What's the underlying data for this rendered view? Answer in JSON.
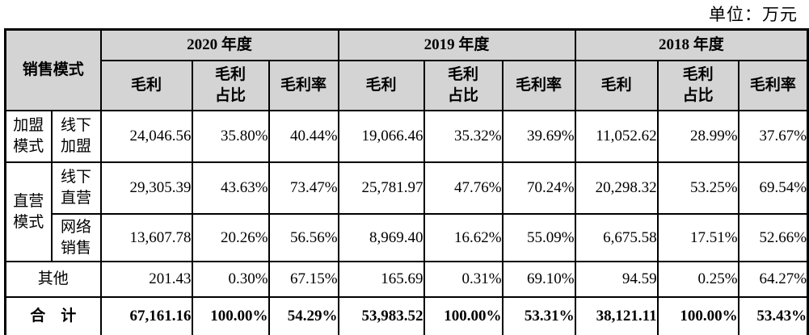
{
  "unit_label": "单位：万元",
  "table": {
    "group_header": "销售模式",
    "year_headers": [
      "2020 年度",
      "2019 年度",
      "2018 年度"
    ],
    "sub_headers": {
      "gross_profit": "毛利",
      "gross_profit_share": "毛利\n占比",
      "gross_margin": "毛利率"
    },
    "rows": [
      {
        "mode": "加盟\n模式",
        "channel": "线下\n加盟",
        "values": [
          "24,046.56",
          "35.80%",
          "40.44%",
          "19,066.46",
          "35.32%",
          "39.69%",
          "11,052.62",
          "28.99%",
          "37.67%"
        ]
      },
      {
        "mode": "直营\n模式",
        "channel": "线下\n直营",
        "values": [
          "29,305.39",
          "43.63%",
          "73.47%",
          "25,781.97",
          "47.76%",
          "70.24%",
          "20,298.32",
          "53.25%",
          "69.54%"
        ]
      },
      {
        "channel": "网络\n销售",
        "values": [
          "13,607.78",
          "20.26%",
          "56.56%",
          "8,969.40",
          "16.62%",
          "55.09%",
          "6,675.58",
          "17.51%",
          "52.66%"
        ]
      },
      {
        "label": "其他",
        "values": [
          "201.43",
          "0.30%",
          "67.15%",
          "165.69",
          "0.31%",
          "69.10%",
          "94.59",
          "0.25%",
          "64.27%"
        ]
      },
      {
        "label": "合　计",
        "values": [
          "67,161.16",
          "100.00%",
          "54.29%",
          "53,983.52",
          "100.00%",
          "53.31%",
          "38,121.11",
          "100.00%",
          "53.43%"
        ]
      }
    ]
  }
}
